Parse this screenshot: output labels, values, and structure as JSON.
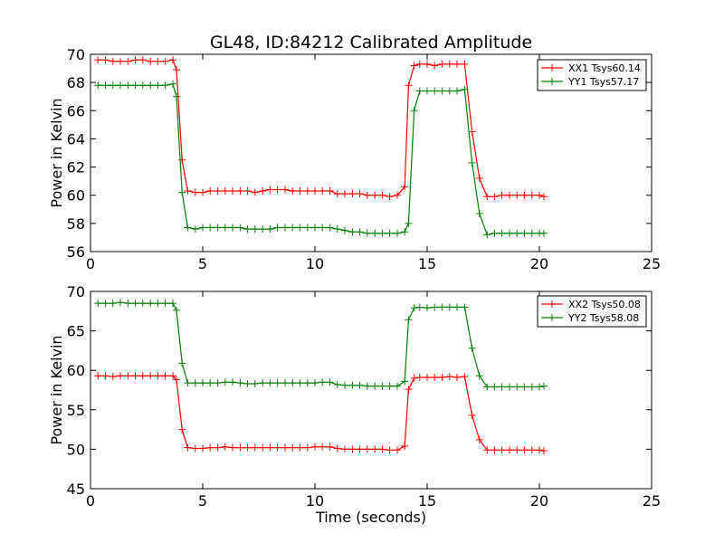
{
  "title": "GL48, ID:84212 Calibrated Amplitude",
  "chart_data": [
    {
      "type": "line",
      "xlabel": "",
      "ylabel": "Power in Kelvin",
      "xlim": [
        0,
        25
      ],
      "ylim": [
        56,
        70
      ],
      "xticks": [
        0,
        5,
        10,
        15,
        20,
        25
      ],
      "yticks": [
        56,
        58,
        60,
        62,
        64,
        66,
        68,
        70
      ],
      "legend_position": "top-right",
      "grid": false,
      "x": [
        0.33,
        0.67,
        1.0,
        1.33,
        1.67,
        2.0,
        2.33,
        2.67,
        3.0,
        3.33,
        3.67,
        3.83,
        4.08,
        4.33,
        4.67,
        5.0,
        5.33,
        5.67,
        6.0,
        6.33,
        6.67,
        7.0,
        7.33,
        7.67,
        8.0,
        8.33,
        8.67,
        9.0,
        9.33,
        9.67,
        10.0,
        10.33,
        10.67,
        11.0,
        11.33,
        11.67,
        12.0,
        12.33,
        12.67,
        13.0,
        13.33,
        13.67,
        14.0,
        14.17,
        14.42,
        14.67,
        15.0,
        15.33,
        15.67,
        16.0,
        16.33,
        16.67,
        17.0,
        17.33,
        17.67,
        18.0,
        18.33,
        18.67,
        19.0,
        19.33,
        19.67,
        20.0,
        20.2
      ],
      "series": [
        {
          "name": "XX1 Tsys60.14",
          "color": "#ff0000",
          "values": [
            69.6,
            69.6,
            69.5,
            69.5,
            69.5,
            69.6,
            69.6,
            69.5,
            69.5,
            69.5,
            69.6,
            68.9,
            62.5,
            60.3,
            60.2,
            60.2,
            60.3,
            60.3,
            60.3,
            60.3,
            60.3,
            60.3,
            60.2,
            60.3,
            60.4,
            60.4,
            60.4,
            60.3,
            60.3,
            60.3,
            60.3,
            60.3,
            60.3,
            60.1,
            60.1,
            60.1,
            60.1,
            60.0,
            60.0,
            60.0,
            59.9,
            60.0,
            60.6,
            67.8,
            69.2,
            69.3,
            69.3,
            69.2,
            69.3,
            69.3,
            69.3,
            69.3,
            64.5,
            61.2,
            59.9,
            59.9,
            60.0,
            60.0,
            60.0,
            60.0,
            60.0,
            60.0,
            59.9
          ]
        },
        {
          "name": "YY1 Tsys57.17",
          "color": "#008000",
          "values": [
            67.8,
            67.8,
            67.8,
            67.8,
            67.8,
            67.8,
            67.8,
            67.8,
            67.8,
            67.8,
            67.9,
            67.0,
            60.2,
            57.7,
            57.6,
            57.7,
            57.7,
            57.7,
            57.7,
            57.7,
            57.7,
            57.6,
            57.6,
            57.6,
            57.6,
            57.7,
            57.7,
            57.7,
            57.7,
            57.7,
            57.7,
            57.7,
            57.7,
            57.6,
            57.5,
            57.4,
            57.4,
            57.3,
            57.3,
            57.3,
            57.3,
            57.3,
            57.4,
            58.0,
            66.0,
            67.4,
            67.4,
            67.4,
            67.4,
            67.4,
            67.4,
            67.5,
            62.3,
            58.7,
            57.2,
            57.3,
            57.3,
            57.3,
            57.3,
            57.3,
            57.3,
            57.3,
            57.3
          ]
        }
      ]
    },
    {
      "type": "line",
      "xlabel": "Time (seconds)",
      "ylabel": "Power in Kelvin",
      "xlim": [
        0,
        25
      ],
      "ylim": [
        45,
        70
      ],
      "xticks": [
        0,
        5,
        10,
        15,
        20,
        25
      ],
      "yticks": [
        45,
        50,
        55,
        60,
        65,
        70
      ],
      "legend_position": "top-right",
      "grid": false,
      "x": [
        0.33,
        0.67,
        1.0,
        1.33,
        1.67,
        2.0,
        2.33,
        2.67,
        3.0,
        3.33,
        3.67,
        3.83,
        4.08,
        4.33,
        4.67,
        5.0,
        5.33,
        5.67,
        6.0,
        6.33,
        6.67,
        7.0,
        7.33,
        7.67,
        8.0,
        8.33,
        8.67,
        9.0,
        9.33,
        9.67,
        10.0,
        10.33,
        10.67,
        11.0,
        11.33,
        11.67,
        12.0,
        12.33,
        12.67,
        13.0,
        13.33,
        13.67,
        14.0,
        14.17,
        14.42,
        14.67,
        15.0,
        15.33,
        15.67,
        16.0,
        16.33,
        16.67,
        17.0,
        17.33,
        17.67,
        18.0,
        18.33,
        18.67,
        19.0,
        19.33,
        19.67,
        20.0,
        20.2
      ],
      "series": [
        {
          "name": "XX2 Tsys50.08",
          "color": "#ff0000",
          "values": [
            59.3,
            59.3,
            59.2,
            59.3,
            59.3,
            59.3,
            59.3,
            59.3,
            59.3,
            59.3,
            59.3,
            58.8,
            52.5,
            50.2,
            50.1,
            50.1,
            50.2,
            50.2,
            50.3,
            50.2,
            50.2,
            50.2,
            50.2,
            50.2,
            50.2,
            50.2,
            50.2,
            50.2,
            50.2,
            50.2,
            50.3,
            50.3,
            50.3,
            50.1,
            50.0,
            50.0,
            50.0,
            50.0,
            50.0,
            50.0,
            49.9,
            49.9,
            50.4,
            57.6,
            59.0,
            59.1,
            59.1,
            59.1,
            59.1,
            59.2,
            59.1,
            59.2,
            54.3,
            51.2,
            49.9,
            49.9,
            49.9,
            49.9,
            49.9,
            49.9,
            49.9,
            49.9,
            49.8
          ]
        },
        {
          "name": "YY2 Tsys58.08",
          "color": "#008000",
          "values": [
            68.5,
            68.5,
            68.5,
            68.6,
            68.5,
            68.5,
            68.5,
            68.5,
            68.5,
            68.5,
            68.5,
            67.6,
            60.9,
            58.4,
            58.4,
            58.4,
            58.4,
            58.4,
            58.5,
            58.5,
            58.4,
            58.3,
            58.3,
            58.4,
            58.4,
            58.4,
            58.4,
            58.4,
            58.4,
            58.4,
            58.4,
            58.5,
            58.5,
            58.2,
            58.1,
            58.1,
            58.1,
            58.0,
            58.0,
            58.0,
            58.0,
            58.0,
            58.6,
            66.4,
            67.9,
            68.0,
            67.9,
            68.0,
            68.0,
            68.0,
            68.0,
            68.0,
            62.8,
            59.3,
            57.9,
            57.9,
            57.9,
            57.9,
            57.9,
            57.9,
            57.9,
            57.9,
            58.0
          ]
        }
      ]
    }
  ]
}
